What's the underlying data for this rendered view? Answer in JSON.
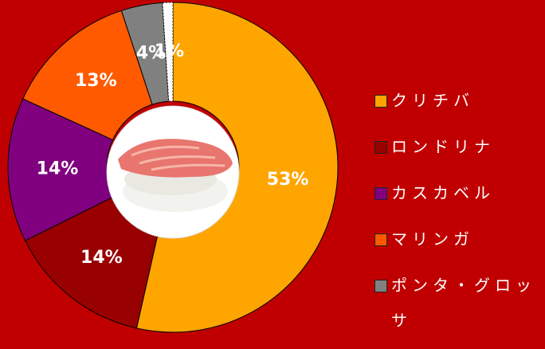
{
  "chart_data": {
    "type": "donut",
    "categories": [
      "クリチバ",
      "ロンドリナ",
      "カスカベル",
      "マリンガ",
      "ポンタ・グロッサ",
      null
    ],
    "values": [
      53,
      14,
      14,
      13,
      4,
      1
    ],
    "value_labels": [
      "53%",
      "14%",
      "14%",
      "13%",
      "4%",
      "1%"
    ],
    "colors": [
      "#ffa500",
      "#990000",
      "#800080",
      "#ff5a00",
      "#808080",
      "#ffffff"
    ]
  }
}
